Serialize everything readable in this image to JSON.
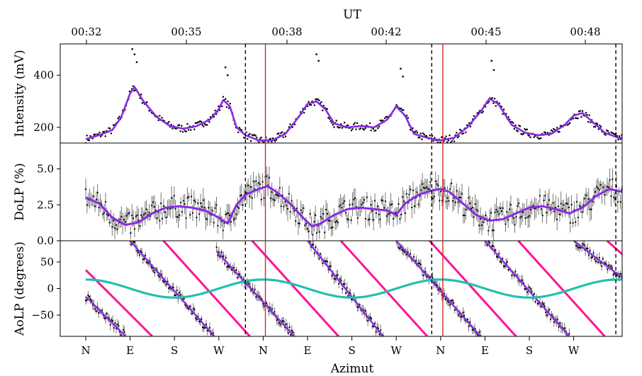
{
  "chart_data": {
    "type": "scatter",
    "figure_xlabel": "Azimut",
    "top_axis": {
      "label": "UT",
      "ticks": [
        "00:32",
        "00:35",
        "00:38",
        "00:42",
        "00:45",
        "00:48"
      ],
      "tick_positions_index": [
        0,
        1.5,
        2.5,
        3.5,
        4.5,
        6
      ]
    },
    "x_range": [
      0,
      12.5
    ],
    "azimuth_ticks": [
      {
        "label": "N",
        "x": 0
      },
      {
        "label": "E",
        "x": 1
      },
      {
        "label": "S",
        "x": 2
      },
      {
        "label": "W",
        "x": 3
      },
      {
        "label": "N",
        "x": 4
      },
      {
        "label": "E",
        "x": 5
      },
      {
        "label": "S",
        "x": 6
      },
      {
        "label": "W",
        "x": 7
      },
      {
        "label": "N",
        "x": 8
      },
      {
        "label": "E",
        "x": 9
      },
      {
        "label": "S",
        "x": 10
      },
      {
        "label": "W",
        "x": 11
      }
    ],
    "vertical_lines": [
      {
        "x": 3.6,
        "style": "dashed",
        "color": "#000000"
      },
      {
        "x": 4.05,
        "style": "solid",
        "color": "#d62728"
      },
      {
        "x": 7.8,
        "style": "dashed",
        "color": "#000000"
      },
      {
        "x": 8.05,
        "style": "solid",
        "color": "#d62728"
      },
      {
        "x": 11.95,
        "style": "dashed",
        "color": "#000000"
      }
    ],
    "panels": [
      {
        "id": "intensity",
        "ylabel": "Intensity (mV)",
        "ylim": [
          140,
          520
        ],
        "yticks": [
          "200",
          "400"
        ],
        "ytick_values": [
          200,
          400
        ],
        "model_color": "#8a2be2",
        "model": [
          [
            0,
            155
          ],
          [
            0.3,
            170
          ],
          [
            0.6,
            190
          ],
          [
            0.8,
            240
          ],
          [
            1.0,
            330
          ],
          [
            1.1,
            355
          ],
          [
            1.3,
            300
          ],
          [
            1.6,
            240
          ],
          [
            1.9,
            205
          ],
          [
            2.2,
            195
          ],
          [
            2.5,
            205
          ],
          [
            2.8,
            230
          ],
          [
            3.0,
            270
          ],
          [
            3.1,
            305
          ],
          [
            3.25,
            280
          ],
          [
            3.4,
            200
          ],
          [
            3.6,
            170
          ],
          [
            3.9,
            150
          ],
          [
            4.2,
            150
          ],
          [
            4.5,
            175
          ],
          [
            4.8,
            240
          ],
          [
            5.0,
            290
          ],
          [
            5.2,
            300
          ],
          [
            5.4,
            270
          ],
          [
            5.6,
            215
          ],
          [
            5.9,
            200
          ],
          [
            6.2,
            205
          ],
          [
            6.5,
            200
          ],
          [
            6.8,
            230
          ],
          [
            7.0,
            280
          ],
          [
            7.2,
            245
          ],
          [
            7.4,
            175
          ],
          [
            7.7,
            160
          ],
          [
            8.0,
            150
          ],
          [
            8.3,
            160
          ],
          [
            8.6,
            200
          ],
          [
            8.9,
            260
          ],
          [
            9.1,
            310
          ],
          [
            9.3,
            290
          ],
          [
            9.6,
            210
          ],
          [
            9.9,
            180
          ],
          [
            10.2,
            170
          ],
          [
            10.5,
            175
          ],
          [
            10.8,
            210
          ],
          [
            11.0,
            245
          ],
          [
            11.2,
            255
          ],
          [
            11.4,
            225
          ],
          [
            11.7,
            180
          ],
          [
            12.0,
            160
          ],
          [
            12.3,
            160
          ],
          [
            12.5,
            165
          ]
        ],
        "peaks": [
          [
            1.05,
            500
          ],
          [
            1.1,
            480
          ],
          [
            1.15,
            450
          ],
          [
            3.15,
            430
          ],
          [
            3.2,
            400
          ],
          [
            5.2,
            480
          ],
          [
            5.25,
            455
          ],
          [
            7.1,
            425
          ],
          [
            7.15,
            395
          ],
          [
            9.15,
            455
          ],
          [
            9.2,
            420
          ]
        ]
      },
      {
        "id": "dolp",
        "ylabel": "DoLP (%)",
        "ylim": [
          0,
          6.8
        ],
        "yticks": [
          "0.0",
          "2.5",
          "5.0"
        ],
        "ytick_values": [
          0,
          2.5,
          5
        ],
        "model_color": "#8a2be2",
        "model": [
          [
            0,
            3.0
          ],
          [
            0.3,
            2.6
          ],
          [
            0.6,
            1.6
          ],
          [
            0.9,
            1.1
          ],
          [
            1.2,
            1.3
          ],
          [
            1.5,
            1.9
          ],
          [
            1.8,
            2.3
          ],
          [
            2.1,
            2.4
          ],
          [
            2.4,
            2.3
          ],
          [
            2.7,
            2.1
          ],
          [
            3.0,
            1.6
          ],
          [
            3.2,
            1.2
          ],
          [
            3.4,
            2.5
          ],
          [
            3.6,
            3.2
          ],
          [
            3.9,
            3.6
          ],
          [
            4.1,
            3.8
          ],
          [
            4.3,
            3.4
          ],
          [
            4.6,
            2.6
          ],
          [
            4.9,
            1.6
          ],
          [
            5.1,
            1.0
          ],
          [
            5.3,
            1.2
          ],
          [
            5.6,
            1.8
          ],
          [
            5.9,
            2.2
          ],
          [
            6.2,
            2.3
          ],
          [
            6.5,
            2.2
          ],
          [
            6.8,
            2.1
          ],
          [
            7.0,
            1.8
          ],
          [
            7.2,
            2.6
          ],
          [
            7.5,
            3.2
          ],
          [
            7.8,
            3.5
          ],
          [
            8.0,
            3.6
          ],
          [
            8.2,
            3.4
          ],
          [
            8.5,
            2.6
          ],
          [
            8.8,
            1.8
          ],
          [
            9.1,
            1.4
          ],
          [
            9.4,
            1.5
          ],
          [
            9.7,
            1.9
          ],
          [
            10.0,
            2.3
          ],
          [
            10.3,
            2.4
          ],
          [
            10.6,
            2.2
          ],
          [
            10.9,
            1.9
          ],
          [
            11.2,
            2.3
          ],
          [
            11.5,
            3.1
          ],
          [
            11.8,
            3.6
          ],
          [
            12.1,
            3.4
          ],
          [
            12.5,
            3.0
          ]
        ]
      },
      {
        "id": "aolp",
        "ylabel": "AoLP (degrees)",
        "ylim": [
          -90,
          90
        ],
        "yticks": [
          "−50",
          "0",
          "50"
        ],
        "ytick_values": [
          -50,
          0,
          50
        ],
        "model_color": "#8a2be2",
        "secondary_color": "#ff1493",
        "sine_color": "#20c0b0",
        "sine": {
          "amplitude": 17,
          "period": 4,
          "phase_x": 1.0
        },
        "model_segments": [
          [
            [
              0,
              -15
            ],
            [
              0.9,
              -90
            ]
          ],
          [
            [
              1.0,
              90
            ],
            [
              2.9,
              -90
            ]
          ],
          [
            [
              2.95,
              70
            ],
            [
              4.05,
              -30
            ],
            [
              4.7,
              -90
            ]
          ],
          [
            [
              5.0,
              90
            ],
            [
              6.7,
              -90
            ]
          ],
          [
            [
              7.0,
              90
            ],
            [
              8.9,
              -90
            ]
          ],
          [
            [
              9.0,
              90
            ],
            [
              10.9,
              -90
            ]
          ],
          [
            [
              11.0,
              90
            ],
            [
              12.5,
              -5
            ]
          ]
        ],
        "secondary_segments": [
          [
            [
              0,
              35
            ],
            [
              1.5,
              -90
            ]
          ],
          [
            [
              1.75,
              90
            ],
            [
              3.7,
              -90
            ]
          ],
          [
            [
              3.75,
              90
            ],
            [
              5.7,
              -90
            ]
          ],
          [
            [
              5.75,
              90
            ],
            [
              7.7,
              -90
            ]
          ],
          [
            [
              7.75,
              90
            ],
            [
              9.7,
              -90
            ]
          ],
          [
            [
              9.75,
              90
            ],
            [
              11.7,
              -90
            ]
          ],
          [
            [
              11.75,
              90
            ],
            [
              12.5,
              35
            ]
          ]
        ]
      }
    ],
    "grid": false,
    "series_colors": {
      "data": "#000000",
      "model": "#8a2be2",
      "secondary": "#ff1493",
      "sine": "#20c0b0"
    }
  }
}
